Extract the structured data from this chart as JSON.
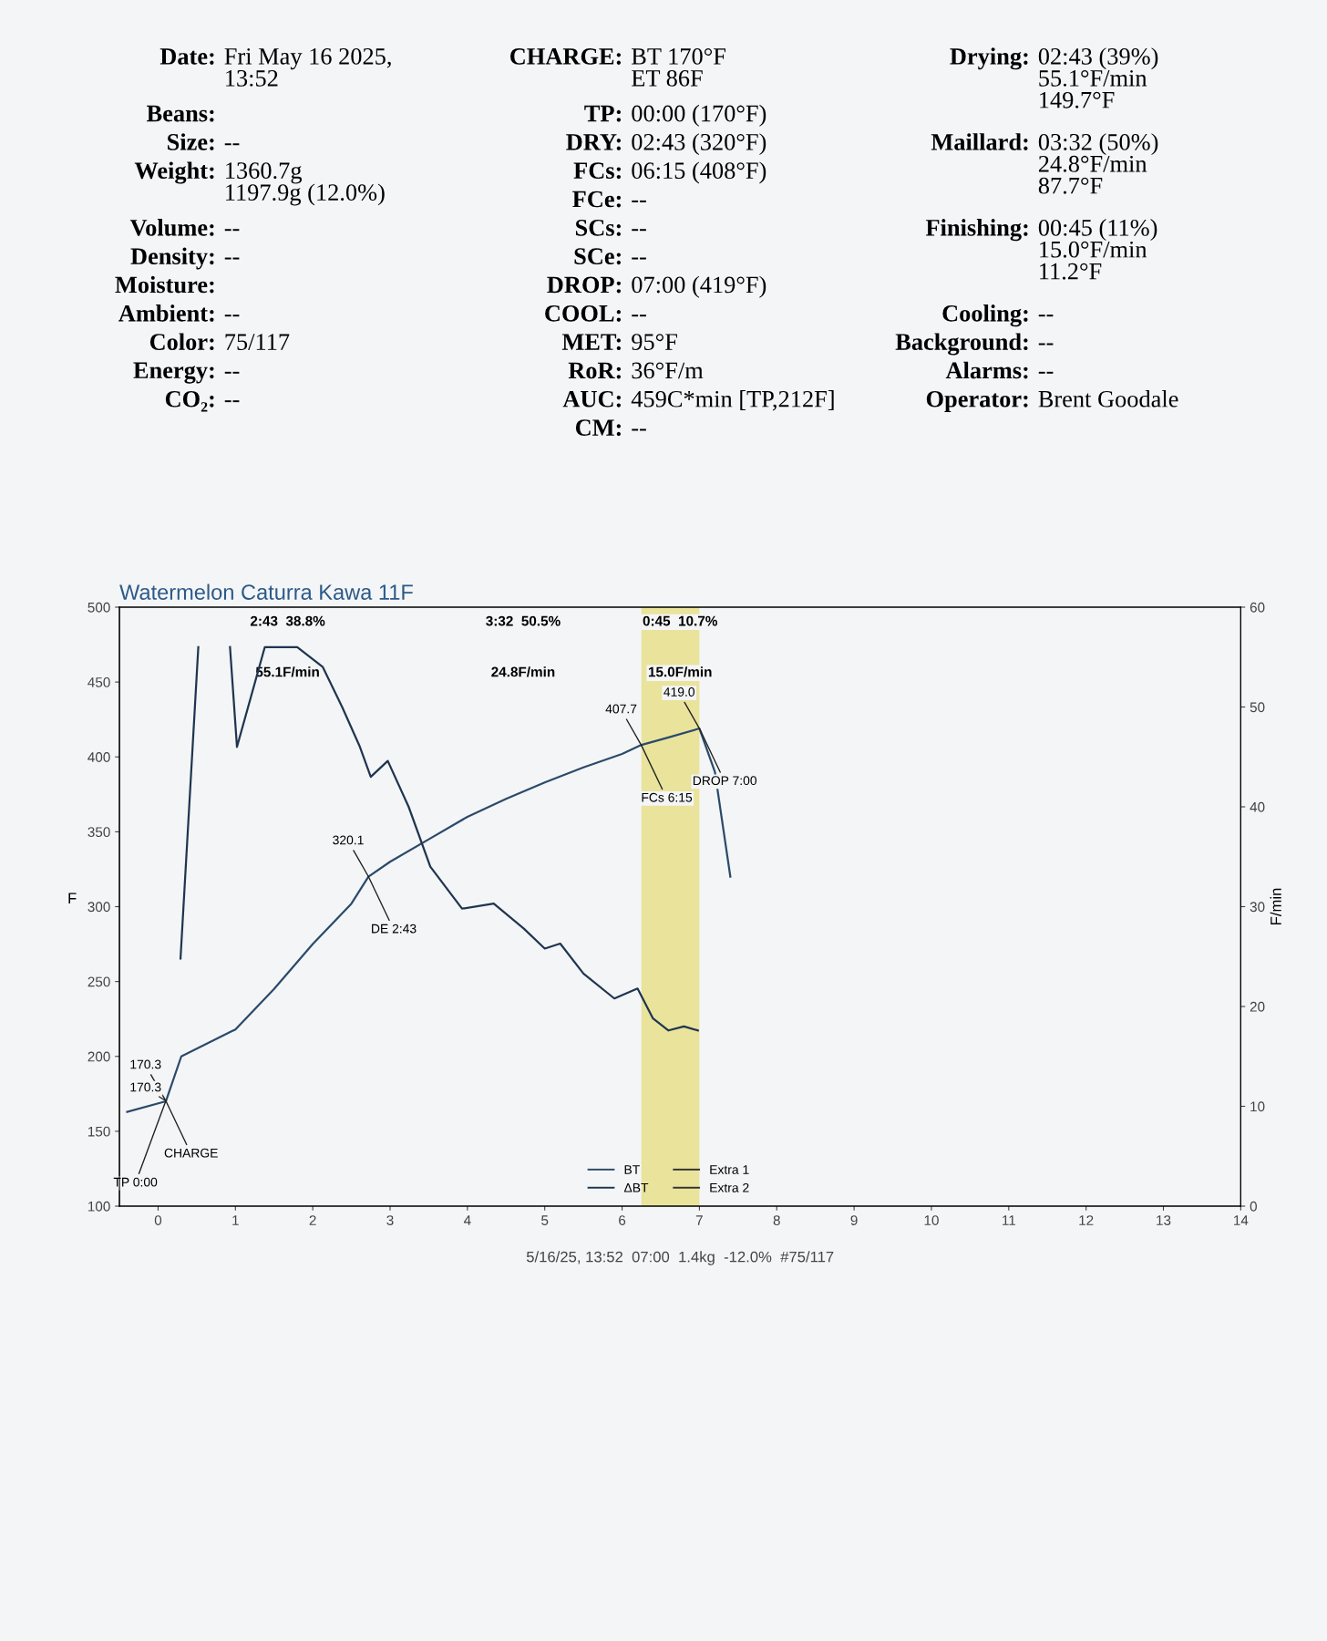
{
  "chart_data": [
    {
      "type": "other",
      "annotations": [
        "Date: Fri May 16 2025,\n13:52",
        "Beans:",
        "Size: --",
        "Weight: 1360.7g\n1197.9g (12.0%)",
        "Volume: --",
        "Density: --",
        "Moisture:",
        "Ambient: --",
        "Color: 75/117",
        "Energy: --",
        "CO₂: --"
      ]
    },
    {
      "type": "other",
      "annotations": [
        "CHARGE: BT 170°F\nET 86F",
        "TP: 00:00 (170°F)",
        "DRY: 02:43 (320°F)",
        "FCs: 06:15 (408°F)",
        "FCe: --",
        "SCs: --",
        "SCe: --",
        "DROP: 07:00 (419°F)",
        "COOL: --",
        "MET: 95°F",
        "RoR: 36°F/m",
        "AUC: 459C*min [TP,212F]",
        "CM: --"
      ]
    },
    {
      "type": "other",
      "annotations": [
        "Drying: 02:43 (39%)\n55.1°F/min\n149.7°F",
        "Maillard: 03:32 (50%)\n24.8°F/min\n87.7°F",
        "Finishing: 00:45 (11%)\n15.0°F/min\n11.2°F",
        "Cooling: --",
        "Background: --",
        "Alarms: --",
        "Operator: Brent Goodale"
      ]
    },
    {
      "type": "line",
      "title": "Watermelon Caturra Kawa 11F",
      "ylabel": "F",
      "y2label": "F/min",
      "xlim": [
        -0.5,
        14
      ],
      "xticks": [
        0,
        1,
        2,
        3,
        4,
        5,
        6,
        7,
        8,
        9,
        10,
        11,
        12,
        13,
        14
      ],
      "ylim": [
        100,
        500
      ],
      "yticks": [
        100,
        150,
        200,
        250,
        300,
        350,
        400,
        450,
        500
      ],
      "y2lim": [
        0,
        60
      ],
      "y2ticks": [
        0,
        10,
        20,
        30,
        40,
        50,
        60
      ],
      "grid": false,
      "legend": "bottom",
      "marker": "none",
      "line_style": "solid",
      "series": [
        {
          "name": "BT",
          "color": "#2b4a6b",
          "x": [
            -0.4,
            0.1,
            0.3,
            1,
            1.5,
            2,
            2.5,
            2.72,
            3,
            3.5,
            4,
            4.5,
            5,
            5.5,
            6,
            6.25,
            6.6,
            7.0,
            7.2,
            7.4
          ],
          "values": [
            163,
            170,
            200,
            218,
            245,
            275,
            302,
            320,
            330,
            345,
            360,
            372,
            383,
            393,
            402,
            408,
            413,
            419,
            390,
            320
          ]
        },
        {
          "name": "ΔBT",
          "color": "#1f3550",
          "axis": "y2",
          "x": [
            0.29,
            0.52,
            0.7,
            0.93,
            1.02,
            1.38,
            1.8,
            2.13,
            2.38,
            2.61,
            2.75,
            2.97,
            3.24,
            3.52,
            3.93,
            4.34,
            4.73,
            5.0,
            5.2,
            5.5,
            5.9,
            6.2,
            6.4,
            6.6,
            6.8,
            6.98
          ],
          "values": [
            24.8,
            56,
            null,
            56,
            46,
            56,
            56,
            54,
            50,
            46,
            43,
            44.6,
            40,
            34,
            29.8,
            30.3,
            27.8,
            25.8,
            26.3,
            23.3,
            20.8,
            21.8,
            18.8,
            17.6,
            18,
            17.6
          ]
        },
        {
          "name": "Extra 1",
          "color": "#333333"
        },
        {
          "name": "Extra 2",
          "color": "#333333"
        }
      ],
      "bands": [
        {
          "axis": "x",
          "from": 6.25,
          "to": 7.0,
          "color": "#e6df8c"
        }
      ],
      "annotations": [
        "2:43  38.8%",
        "55.1F/min",
        "3:32  50.5%",
        "24.8F/min",
        "0:45  10.7%",
        "15.0F/min",
        {
          "text": "170.3",
          "x": 0.1,
          "y": 170.3
        },
        {
          "text": "CHARGE",
          "x": 0.1,
          "y": 170.3
        },
        {
          "text": "170.3",
          "x": 0.1,
          "y": 170.3
        },
        {
          "text": "TP 0:00",
          "x": 0.1,
          "y": 170.3
        },
        {
          "text": "320.1",
          "x": 2.72,
          "y": 320.1
        },
        {
          "text": "DE 2:43",
          "x": 2.72,
          "y": 320.1
        },
        {
          "text": "407.7",
          "x": 6.25,
          "y": 407.7
        },
        {
          "text": "FCs 6:15",
          "x": 6.25,
          "y": 407.7
        },
        {
          "text": "419.0",
          "x": 7.0,
          "y": 419.0
        },
        {
          "text": "DROP 7:00",
          "x": 7.0,
          "y": 419.0
        },
        "5/16/25, 13:52  07:00  1.4kg  -12.0%  #75/117"
      ]
    }
  ]
}
